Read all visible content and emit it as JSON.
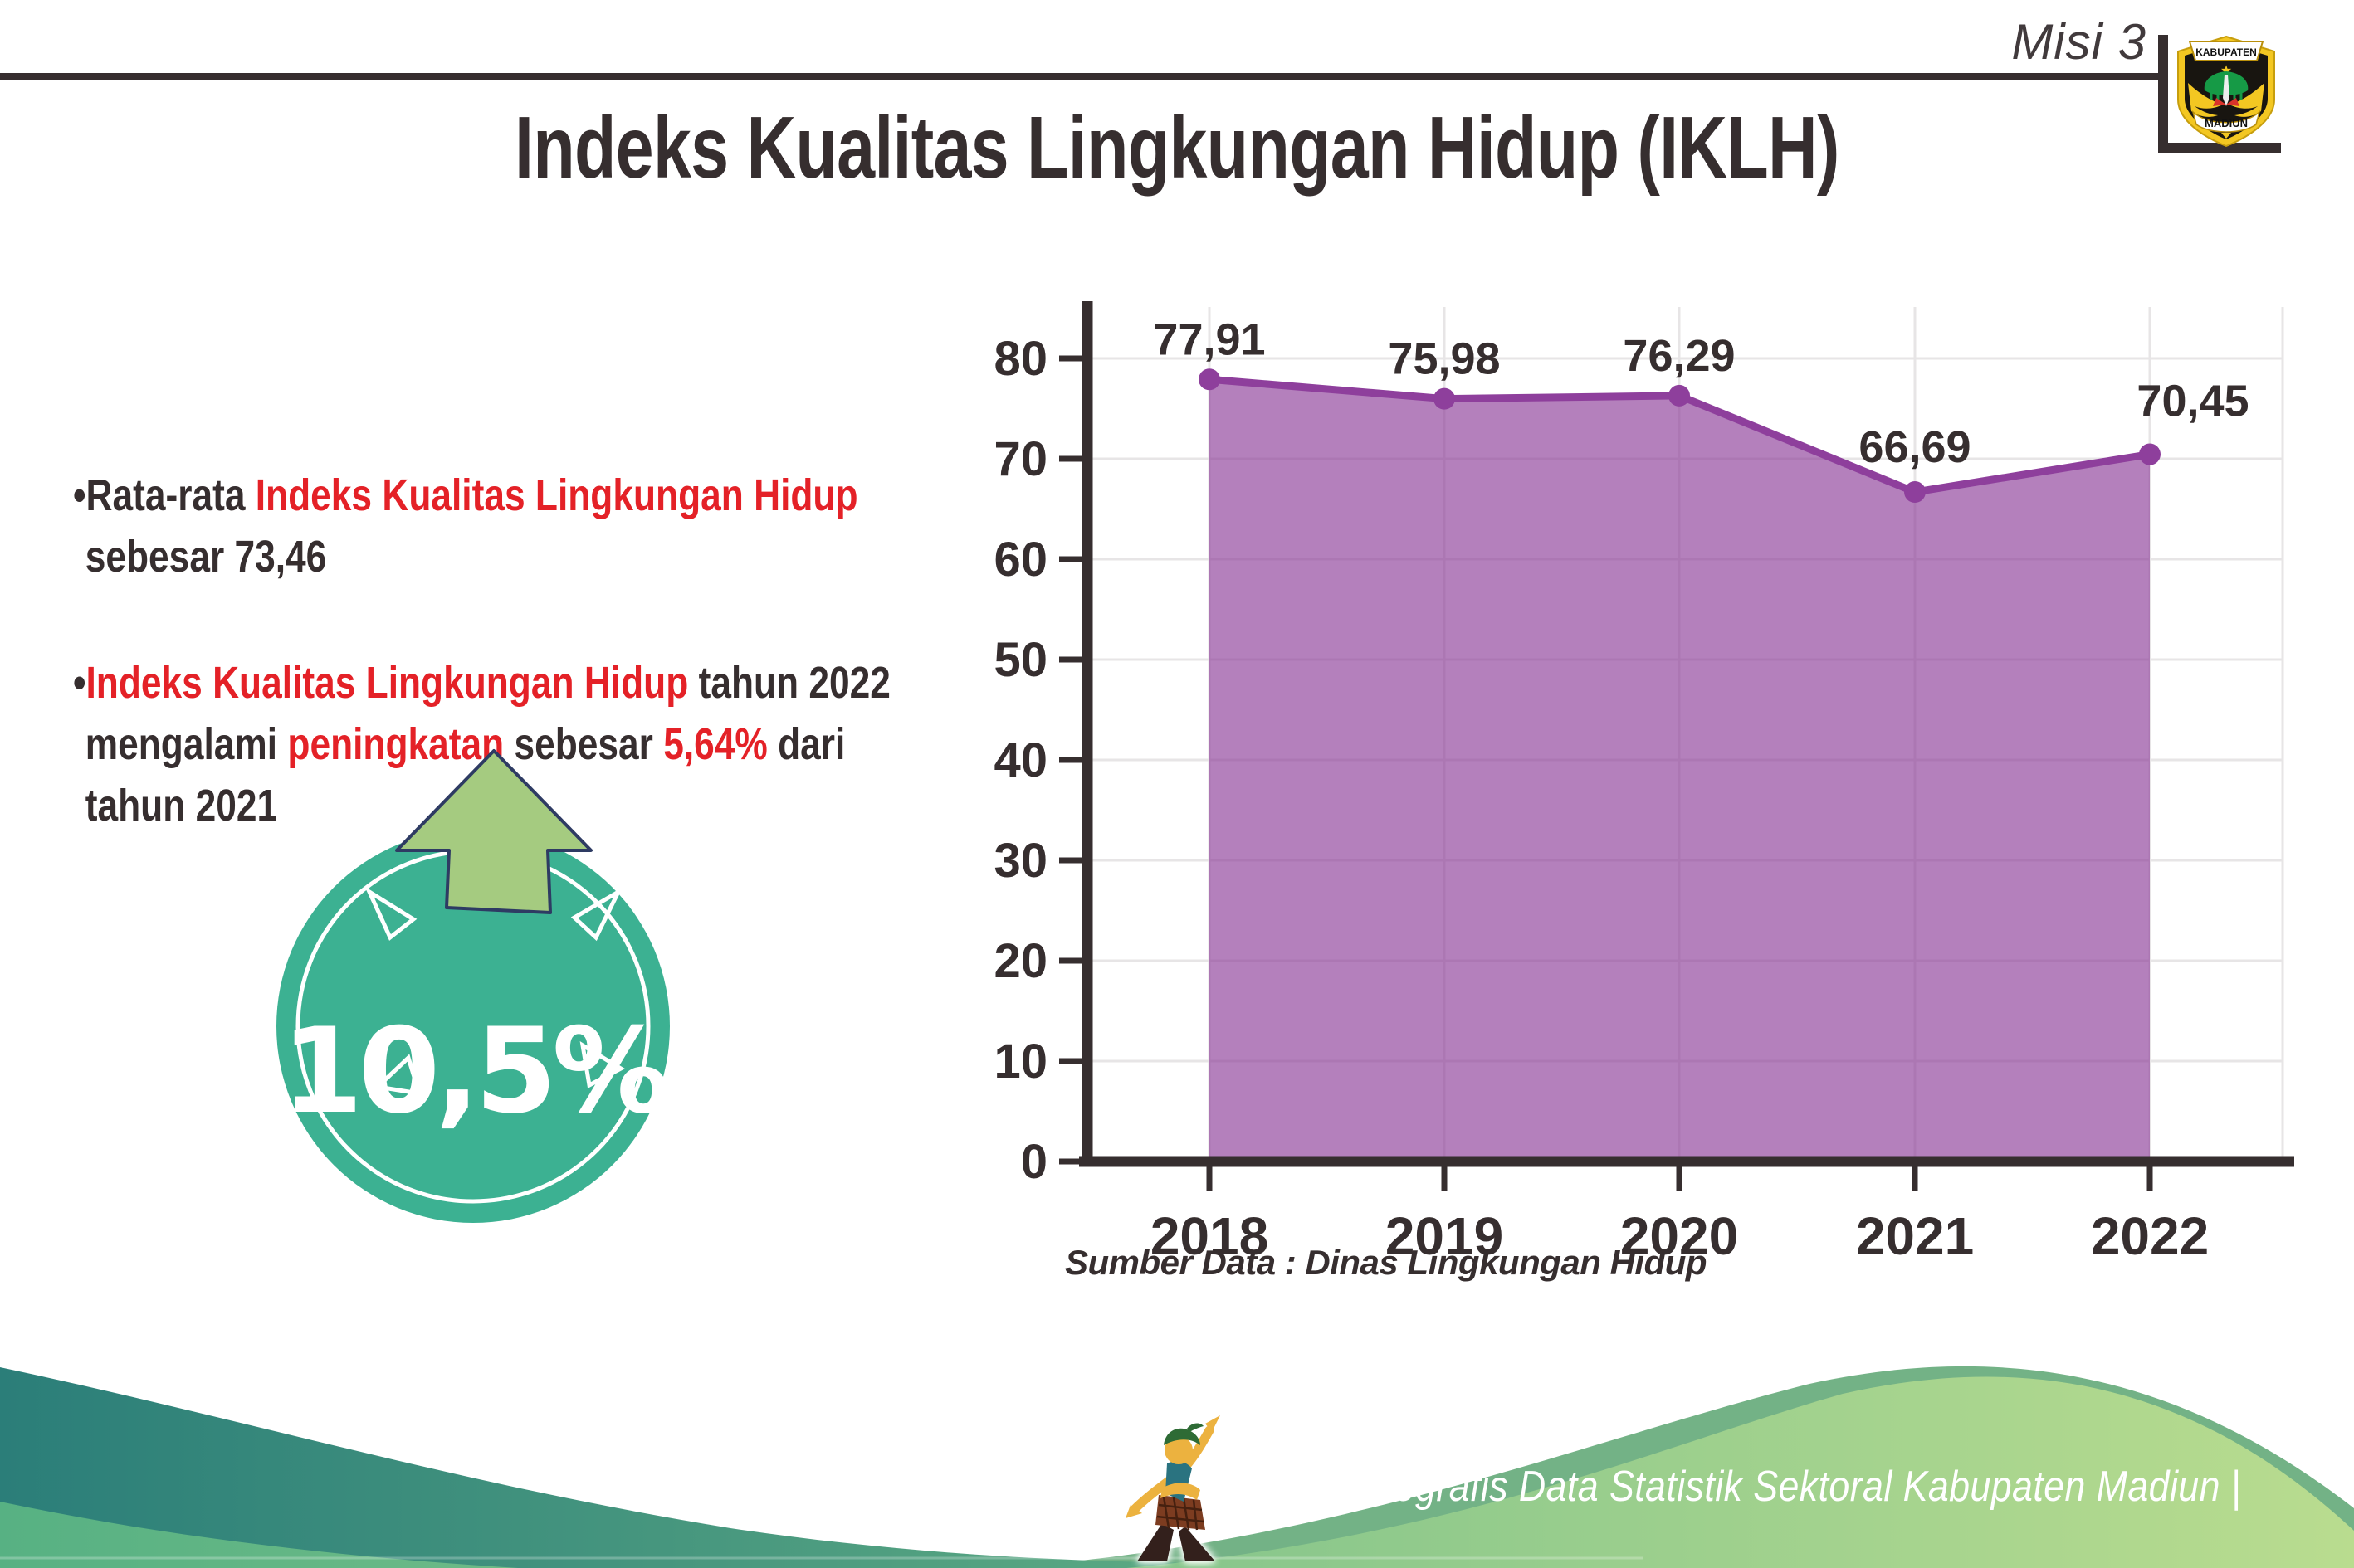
{
  "header": {
    "misi_label": "Misi 3",
    "logo": {
      "top_label": "KABUPATEN",
      "bottom_label": "MADIUN"
    }
  },
  "title": "Indeks Kualitas Lingkungan Hidup (IKLH)",
  "bullet1": {
    "parts": [
      {
        "text": "•Rata-rata ",
        "color": "dark"
      },
      {
        "text": "Indeks Kualitas Lingkungan Hidup",
        "color": "red"
      },
      {
        "text": "sebesar 73,46",
        "color": "dark"
      }
    ]
  },
  "bullet2": {
    "parts": [
      {
        "text": "•",
        "color": "dark"
      },
      {
        "text": "Indeks Kualitas Lingkungan Hidup",
        "color": "red"
      },
      {
        "text": " tahun 2022",
        "color": "dark"
      },
      {
        "text": "mengalami ",
        "color": "dark"
      },
      {
        "text": "peningkatan",
        "color": "red"
      },
      {
        "text": " sebesar ",
        "color": "dark"
      },
      {
        "text": "5,64%",
        "color": "red"
      },
      {
        "text": " dari",
        "color": "dark"
      },
      {
        "text": "tahun 2021",
        "color": "dark"
      }
    ]
  },
  "badge": {
    "value": "10,5%"
  },
  "chart_data": {
    "type": "area",
    "title": "",
    "categories": [
      "2018",
      "2019",
      "2020",
      "2021",
      "2022"
    ],
    "values": [
      77.91,
      75.98,
      76.29,
      66.69,
      70.45
    ],
    "point_labels": [
      "77,91",
      "75,98",
      "76,29",
      "66,69",
      "70,45"
    ],
    "series_name": "IKLH",
    "xlabel": "",
    "ylabel": "",
    "ylim": [
      0,
      80
    ],
    "yticks": [
      0,
      10,
      20,
      30,
      40,
      50,
      60,
      70,
      80
    ],
    "grid": true,
    "legend": false
  },
  "source_note": "Sumber Data : Dinas Lingkungan Hidup",
  "footer": {
    "caption": "Media Infografis Data Statistik Sektoral Kabupaten Madiun |"
  },
  "colors": {
    "dark": "#362e2f",
    "red": "#e42127",
    "teal_badge": "#3cb192",
    "arrow_green": "#a5cb80",
    "arrow_outline": "#2e3b63",
    "line_purple": "#8e3f9c",
    "fill_purple": "rgba(140,60,152,0.65)",
    "grid": "#e7e5e6",
    "axis": "#362e2f",
    "footer_teal": "#2b7e79",
    "footer_green_left": "#57b183",
    "footer_green_right": "#b9dc8f",
    "footer_edge": "#73b286"
  }
}
